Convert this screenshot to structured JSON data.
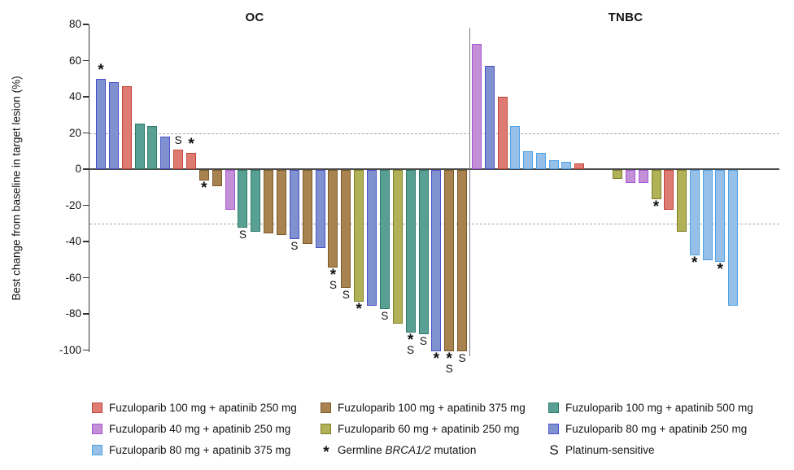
{
  "chart_data": {
    "type": "bar",
    "subtype": "waterfall",
    "title": "",
    "xlabel": "",
    "ylabel": "Best change from baseline in target lesion (%)",
    "ylim": [
      -100,
      80
    ],
    "yticks": [
      80,
      60,
      40,
      20,
      0,
      -20,
      -40,
      -60,
      -80,
      -100
    ],
    "reference_lines": [
      20,
      -30
    ],
    "grid": "dashed reference lines only",
    "legend_position": "bottom",
    "groups": {
      "red": {
        "label": "Fuzuloparib 100 mg + apatinib 250 mg",
        "fill": "#DE7B72",
        "stroke": "#C1463E"
      },
      "brown": {
        "label": "Fuzuloparib 100 mg + apatinib 375 mg",
        "fill": "#A8834F",
        "stroke": "#7B5A2B"
      },
      "teal": {
        "label": "Fuzuloparib 100 mg + apatinib 500 mg",
        "fill": "#58A094",
        "stroke": "#2F7A68"
      },
      "purple": {
        "label": "Fuzuloparib 40 mg + apatinib 250 mg",
        "fill": "#C38FD6",
        "stroke": "#A557D6"
      },
      "olive": {
        "label": "Fuzuloparib 60 mg + apatinib 250 mg",
        "fill": "#B1B257",
        "stroke": "#7F8026"
      },
      "blue": {
        "label": "Fuzuloparib 80 mg + apatinib 250 mg",
        "fill": "#7F92CF",
        "stroke": "#4951C8"
      },
      "lightblue": {
        "label": "Fuzuloparib 80 mg + apatinib 375 mg",
        "fill": "#96C0E7",
        "stroke": "#4FA2E8"
      }
    },
    "panels": [
      {
        "title": "OC",
        "bars": [
          {
            "value": 50,
            "group": "blue",
            "marks": [
              "*"
            ]
          },
          {
            "value": 48,
            "group": "blue"
          },
          {
            "value": 46,
            "group": "red"
          },
          {
            "value": 25,
            "group": "teal"
          },
          {
            "value": 24,
            "group": "teal"
          },
          {
            "value": 18,
            "group": "blue"
          },
          {
            "value": 11,
            "group": "red",
            "marks": [
              "S"
            ]
          },
          {
            "value": 9,
            "group": "red",
            "marks": [
              "*"
            ]
          },
          {
            "value": -6,
            "group": "brown",
            "marks": [
              "*"
            ]
          },
          {
            "value": -9,
            "group": "brown"
          },
          {
            "value": -22,
            "group": "purple"
          },
          {
            "value": -32,
            "group": "teal",
            "marks": [
              "S"
            ]
          },
          {
            "value": -34,
            "group": "teal"
          },
          {
            "value": -35,
            "group": "brown"
          },
          {
            "value": -36,
            "group": "brown"
          },
          {
            "value": -38,
            "group": "blue",
            "marks": [
              "S"
            ]
          },
          {
            "value": -41,
            "group": "brown"
          },
          {
            "value": -43,
            "group": "blue"
          },
          {
            "value": -54,
            "group": "brown",
            "marks": [
              "*",
              "S"
            ]
          },
          {
            "value": -65,
            "group": "brown",
            "marks": [
              "S"
            ]
          },
          {
            "value": -73,
            "group": "olive",
            "marks": [
              "*"
            ]
          },
          {
            "value": -75,
            "group": "blue"
          },
          {
            "value": -77,
            "group": "teal",
            "marks": [
              "S"
            ]
          },
          {
            "value": -85,
            "group": "olive"
          },
          {
            "value": -90,
            "group": "teal",
            "marks": [
              "*",
              "S"
            ]
          },
          {
            "value": -91,
            "group": "teal",
            "marks": [
              "S"
            ]
          },
          {
            "value": -100,
            "group": "blue",
            "marks": [
              "*"
            ]
          },
          {
            "value": -100,
            "group": "brown",
            "marks": [
              "*",
              "S"
            ]
          },
          {
            "value": -100,
            "group": "brown",
            "marks": [
              "S"
            ]
          }
        ]
      },
      {
        "title": "TNBC",
        "zero_gap_after_index": 8,
        "zero_gap_slots": 2,
        "bars": [
          {
            "value": 69,
            "group": "purple"
          },
          {
            "value": 57,
            "group": "blue"
          },
          {
            "value": 40,
            "group": "red"
          },
          {
            "value": 24,
            "group": "lightblue"
          },
          {
            "value": 10,
            "group": "lightblue"
          },
          {
            "value": 9,
            "group": "lightblue"
          },
          {
            "value": 5,
            "group": "lightblue"
          },
          {
            "value": 4,
            "group": "lightblue"
          },
          {
            "value": 3,
            "group": "red"
          },
          {
            "value": -5,
            "group": "olive"
          },
          {
            "value": -7,
            "group": "purple"
          },
          {
            "value": -7,
            "group": "purple"
          },
          {
            "value": -16,
            "group": "olive",
            "marks": [
              "*"
            ]
          },
          {
            "value": -22,
            "group": "red"
          },
          {
            "value": -34,
            "group": "olive"
          },
          {
            "value": -47,
            "group": "lightblue",
            "marks": [
              "*"
            ]
          },
          {
            "value": -50,
            "group": "lightblue"
          },
          {
            "value": -51,
            "group": "lightblue",
            "marks": [
              "*"
            ]
          },
          {
            "value": -75,
            "group": "lightblue"
          }
        ]
      }
    ]
  },
  "legend": {
    "columns": [
      {
        "items": [
          {
            "kind": "group",
            "group": "red"
          },
          {
            "kind": "group",
            "group": "purple"
          },
          {
            "kind": "group",
            "group": "lightblue"
          }
        ]
      },
      {
        "items": [
          {
            "kind": "group",
            "group": "brown"
          },
          {
            "kind": "group",
            "group": "olive"
          },
          {
            "kind": "symbol",
            "symbol": "*",
            "segments": [
              {
                "text": "Germline "
              },
              {
                "text": "BRCA1/2",
                "italic": true
              },
              {
                "text": " mutation"
              }
            ]
          }
        ]
      },
      {
        "items": [
          {
            "kind": "group",
            "group": "teal"
          },
          {
            "kind": "group",
            "group": "blue"
          },
          {
            "kind": "symbol",
            "symbol": "S",
            "segments": [
              {
                "text": "Platinum-sensitive"
              }
            ]
          }
        ]
      }
    ]
  }
}
